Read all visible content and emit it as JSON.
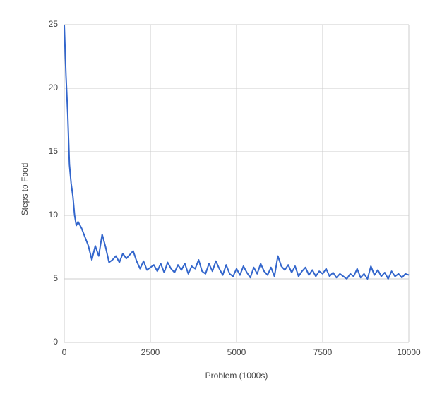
{
  "chart_data": {
    "type": "line",
    "x_label": "Problem (1000s)",
    "y_label": "Steps to Food",
    "x": [
      0,
      50,
      100,
      150,
      200,
      250,
      300,
      350,
      400,
      500,
      600,
      700,
      800,
      900,
      1000,
      1100,
      1200,
      1300,
      1400,
      1500,
      1600,
      1700,
      1800,
      1900,
      2000,
      2100,
      2200,
      2300,
      2400,
      2500,
      2600,
      2700,
      2800,
      2900,
      3000,
      3100,
      3200,
      3300,
      3400,
      3500,
      3600,
      3700,
      3800,
      3900,
      4000,
      4100,
      4200,
      4300,
      4400,
      4500,
      4600,
      4700,
      4800,
      4900,
      5000,
      5100,
      5200,
      5300,
      5400,
      5500,
      5600,
      5700,
      5800,
      5900,
      6000,
      6100,
      6200,
      6300,
      6400,
      6500,
      6600,
      6700,
      6800,
      6900,
      7000,
      7100,
      7200,
      7300,
      7400,
      7500,
      7600,
      7700,
      7800,
      7900,
      8000,
      8100,
      8200,
      8300,
      8400,
      8500,
      8600,
      8700,
      8800,
      8900,
      9000,
      9100,
      9200,
      9300,
      9400,
      9500,
      9600,
      9700,
      9800,
      9900,
      10000
    ],
    "series": [
      {
        "color": "#3366cc",
        "values": [
          25,
          21,
          18,
          14,
          12.5,
          11.5,
          10,
          9.2,
          9.5,
          9,
          8.3,
          7.6,
          6.5,
          7.6,
          6.8,
          8.5,
          7.5,
          6.3,
          6.5,
          6.8,
          6.3,
          7.0,
          6.6,
          6.9,
          7.2,
          6.4,
          5.8,
          6.4,
          5.7,
          5.9,
          6.1,
          5.6,
          6.2,
          5.5,
          6.3,
          5.8,
          5.5,
          6.1,
          5.7,
          6.2,
          5.4,
          6.0,
          5.8,
          6.5,
          5.6,
          5.4,
          6.2,
          5.6,
          6.4,
          5.8,
          5.3,
          6.1,
          5.4,
          5.2,
          5.8,
          5.3,
          6.0,
          5.5,
          5.1,
          5.9,
          5.4,
          6.2,
          5.6,
          5.3,
          5.9,
          5.2,
          6.8,
          6.0,
          5.7,
          6.1,
          5.5,
          6.0,
          5.2,
          5.6,
          5.9,
          5.3,
          5.7,
          5.2,
          5.6,
          5.4,
          5.8,
          5.2,
          5.5,
          5.1,
          5.4,
          5.2,
          5.0,
          5.4,
          5.2,
          5.8,
          5.1,
          5.4,
          5.0,
          6.0,
          5.3,
          5.7,
          5.2,
          5.5,
          5.0,
          5.6,
          5.2,
          5.4,
          5.1,
          5.4,
          5.3
        ]
      }
    ],
    "xlim": [
      0,
      10000
    ],
    "xticks": [
      0,
      2500,
      5000,
      7500,
      10000
    ],
    "ylim": [
      0,
      25
    ],
    "yticks": [
      0,
      5,
      10,
      15,
      20,
      25
    ],
    "grid": true
  }
}
